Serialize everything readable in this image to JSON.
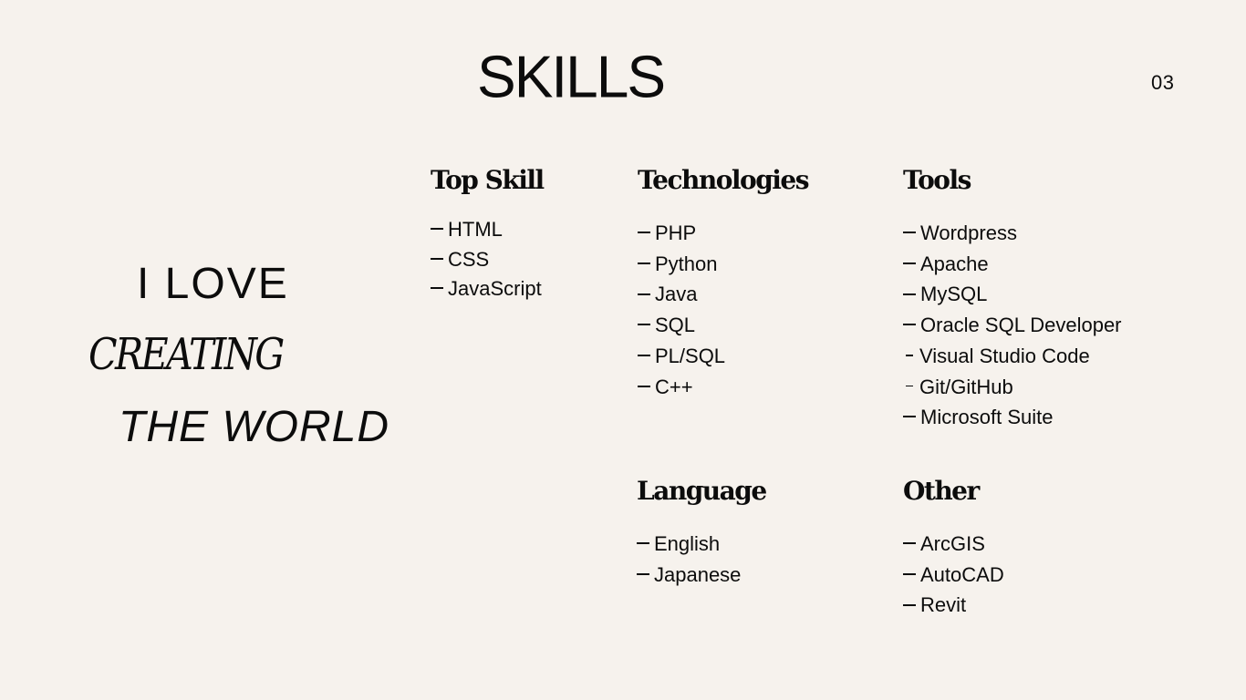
{
  "header": {
    "title": "SKILLS",
    "page_number": "03"
  },
  "tagline": {
    "line1": "I LOVE",
    "line2": "CREATING",
    "line3": "THE WORLD"
  },
  "sections": {
    "top_skill": {
      "heading": "Top Skill",
      "items": [
        "HTML",
        "CSS",
        "JavaScript"
      ]
    },
    "technologies": {
      "heading": "Technologies",
      "items": [
        "PHP",
        "Python",
        "Java",
        "SQL",
        "PL/SQL",
        "C++"
      ]
    },
    "tools": {
      "heading": "Tools",
      "items": [
        "Wordpress",
        "Apache",
        "MySQL",
        "Oracle SQL Developer",
        "Visual Studio Code",
        "Git/GitHub",
        "Microsoft Suite"
      ]
    },
    "language": {
      "heading": "Language",
      "items": [
        "English",
        "Japanese"
      ]
    },
    "other": {
      "heading": "Other",
      "items": [
        "ArcGIS",
        "AutoCAD",
        "Revit"
      ]
    }
  }
}
